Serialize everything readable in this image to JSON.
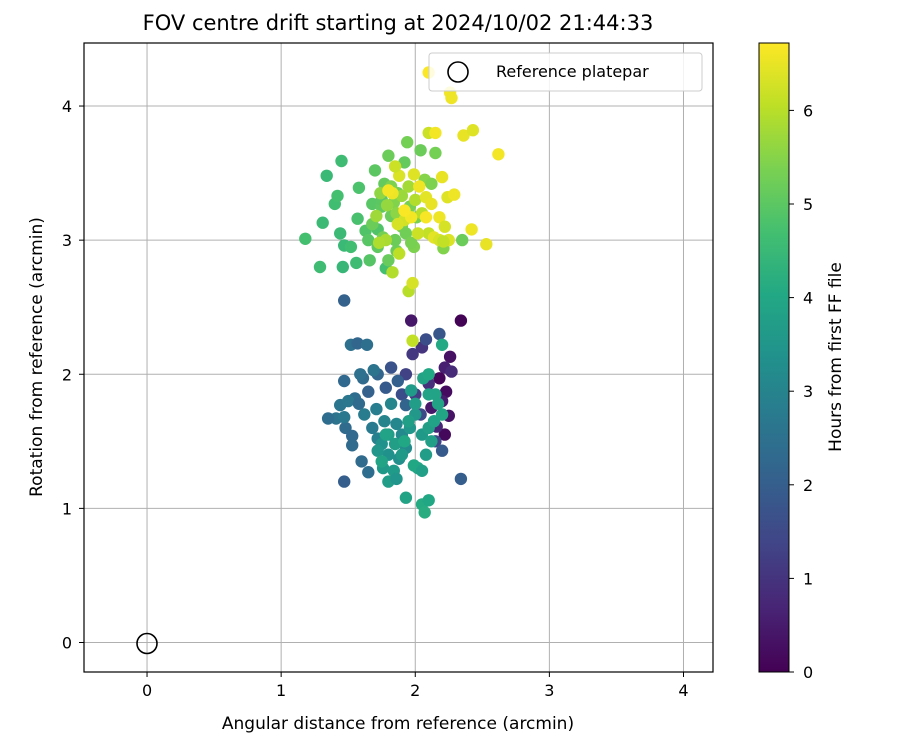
{
  "chart_data": {
    "type": "scatter",
    "title": "FOV centre drift starting at 2024/10/02 21:44:33",
    "xlabel": "Angular distance from reference (arcmin)",
    "ylabel": "Rotation from reference (arcmin)",
    "colorbar_label": "Hours from first FF file",
    "colormap": "viridis",
    "xlim": [
      -0.47,
      4.22
    ],
    "ylim": [
      -0.22,
      4.47
    ],
    "xticks": [
      "0",
      "1",
      "2",
      "3",
      "4"
    ],
    "yticks": [
      "0",
      "1",
      "2",
      "3",
      "4"
    ],
    "colorbar_range": [
      0,
      6.72
    ],
    "colorbar_ticks": [
      "0",
      "1",
      "2",
      "3",
      "4",
      "5",
      "6"
    ],
    "grid": true,
    "legend": {
      "position": "top-right",
      "entries": [
        "Reference platepar"
      ]
    },
    "reference_point": {
      "x": 0,
      "y": 0,
      "marker": "hollow circle"
    },
    "series": [
      {
        "color_by": "hours",
        "points": [
          [
            2.34,
            2.4,
            0.05
          ],
          [
            1.97,
            2.4,
            0.4
          ],
          [
            2.26,
            2.13,
            0.3
          ],
          [
            2.22,
            2.05,
            0.6
          ],
          [
            2.18,
            1.97,
            0.1
          ],
          [
            2.23,
            1.87,
            0.2
          ],
          [
            2.27,
            2.02,
            0.8
          ],
          [
            2.2,
            1.8,
            0.5
          ],
          [
            2.25,
            1.69,
            0.35
          ],
          [
            2.22,
            1.55,
            0.15
          ],
          [
            2.16,
            1.61,
            0.7
          ],
          [
            2.1,
            1.93,
            0.9
          ],
          [
            2.05,
            2.2,
            1.0
          ],
          [
            1.98,
            2.15,
            1.1
          ],
          [
            1.93,
            2.0,
            1.3
          ],
          [
            2.0,
            1.85,
            1.2
          ],
          [
            2.12,
            1.75,
            0.45
          ],
          [
            2.15,
            1.5,
            1.4
          ],
          [
            2.04,
            1.7,
            1.5
          ],
          [
            2.08,
            2.26,
            1.6
          ],
          [
            1.9,
            1.85,
            1.6
          ],
          [
            2.18,
            2.3,
            1.8
          ],
          [
            2.34,
            1.22,
            2.0
          ],
          [
            2.2,
            1.43,
            1.9
          ],
          [
            1.82,
            2.05,
            1.75
          ],
          [
            1.78,
            1.9,
            1.9
          ],
          [
            1.87,
            1.95,
            2.05
          ],
          [
            1.93,
            1.77,
            2.15
          ],
          [
            1.72,
            2.0,
            2.2
          ],
          [
            1.65,
            1.87,
            2.1
          ],
          [
            1.61,
            1.97,
            2.3
          ],
          [
            1.55,
            1.82,
            2.4
          ],
          [
            1.47,
            2.55,
            2.1
          ],
          [
            1.52,
            2.22,
            2.5
          ],
          [
            1.57,
            2.23,
            2.2
          ],
          [
            1.64,
            2.22,
            2.45
          ],
          [
            1.47,
            1.95,
            2.25
          ],
          [
            1.44,
            1.77,
            2.6
          ],
          [
            1.41,
            1.67,
            2.55
          ],
          [
            1.5,
            1.8,
            2.65
          ],
          [
            1.58,
            1.78,
            2.35
          ],
          [
            1.48,
            1.6,
            2.3
          ],
          [
            1.53,
            1.54,
            2.25
          ],
          [
            1.53,
            1.47,
            2.3
          ],
          [
            1.6,
            1.35,
            2.35
          ],
          [
            1.65,
            1.27,
            2.4
          ],
          [
            1.47,
            1.2,
            2.0
          ],
          [
            1.47,
            1.68,
            2.7
          ],
          [
            1.62,
            1.7,
            2.8
          ],
          [
            1.71,
            1.74,
            2.85
          ],
          [
            1.68,
            1.6,
            2.75
          ],
          [
            1.72,
            1.52,
            2.9
          ],
          [
            1.77,
            1.65,
            3.0
          ],
          [
            1.82,
            1.78,
            3.05
          ],
          [
            1.86,
            1.63,
            3.1
          ],
          [
            1.9,
            1.55,
            3.15
          ],
          [
            1.93,
            1.45,
            3.2
          ],
          [
            1.88,
            1.37,
            3.3
          ],
          [
            1.8,
            1.4,
            3.35
          ],
          [
            1.75,
            1.48,
            3.4
          ],
          [
            1.72,
            1.43,
            3.5
          ],
          [
            1.76,
            1.3,
            3.6
          ],
          [
            1.8,
            1.2,
            3.7
          ],
          [
            1.84,
            1.28,
            3.65
          ],
          [
            1.86,
            1.22,
            3.45
          ],
          [
            1.96,
            1.6,
            3.5
          ],
          [
            2.0,
            1.7,
            3.55
          ],
          [
            2.05,
            1.55,
            3.6
          ],
          [
            2.08,
            1.4,
            3.7
          ],
          [
            2.1,
            1.6,
            3.75
          ],
          [
            2.12,
            1.5,
            3.8
          ],
          [
            2.14,
            1.65,
            3.85
          ],
          [
            2.17,
            1.78,
            3.9
          ],
          [
            2.2,
            1.7,
            3.95
          ],
          [
            2.15,
            1.85,
            3.9
          ],
          [
            2.1,
            1.85,
            3.85
          ],
          [
            2.06,
            1.97,
            3.9
          ],
          [
            2.1,
            2.0,
            4.0
          ],
          [
            2.2,
            2.22,
            4.05
          ],
          [
            2.02,
            1.3,
            3.95
          ],
          [
            1.99,
            1.32,
            4.0
          ],
          [
            2.05,
            1.28,
            3.8
          ],
          [
            1.93,
            1.08,
            3.9
          ],
          [
            2.05,
            1.03,
            4.1
          ],
          [
            2.1,
            1.06,
            4.0
          ],
          [
            2.07,
            0.97,
            4.15
          ],
          [
            1.9,
            1.4,
            3.6
          ],
          [
            1.8,
            1.55,
            3.7
          ],
          [
            1.85,
            1.48,
            3.75
          ],
          [
            1.97,
            1.88,
            3.65
          ],
          [
            2.0,
            1.78,
            3.7
          ],
          [
            1.95,
            1.65,
            3.8
          ],
          [
            1.78,
            1.55,
            3.85
          ],
          [
            1.75,
            1.35,
            3.9
          ],
          [
            1.92,
            1.5,
            4.0
          ],
          [
            1.35,
            1.67,
            2.4
          ],
          [
            1.59,
            2.0,
            2.5
          ],
          [
            1.69,
            2.03,
            2.55
          ],
          [
            1.18,
            3.01,
            4.7
          ],
          [
            1.29,
            2.8,
            4.6
          ],
          [
            1.31,
            3.13,
            4.55
          ],
          [
            1.34,
            3.48,
            4.5
          ],
          [
            1.4,
            3.27,
            4.65
          ],
          [
            1.42,
            3.33,
            4.7
          ],
          [
            1.45,
            3.59,
            4.6
          ],
          [
            1.44,
            3.05,
            4.55
          ],
          [
            1.47,
            2.96,
            4.5
          ],
          [
            1.46,
            2.8,
            4.45
          ],
          [
            1.52,
            2.95,
            4.65
          ],
          [
            1.56,
            2.83,
            4.6
          ],
          [
            1.57,
            3.16,
            4.75
          ],
          [
            1.58,
            3.39,
            4.8
          ],
          [
            1.63,
            3.07,
            4.85
          ],
          [
            1.66,
            2.85,
            4.9
          ],
          [
            1.68,
            3.27,
            4.95
          ],
          [
            1.7,
            3.52,
            5.0
          ],
          [
            1.72,
            3.08,
            4.85
          ],
          [
            1.75,
            3.25,
            5.05
          ],
          [
            1.77,
            3.42,
            5.1
          ],
          [
            1.78,
            2.79,
            4.7
          ],
          [
            1.8,
            3.63,
            5.2
          ],
          [
            1.82,
            3.18,
            5.15
          ],
          [
            1.85,
            3.0,
            5.2
          ],
          [
            1.87,
            3.35,
            5.25
          ],
          [
            1.9,
            3.1,
            5.3
          ],
          [
            1.92,
            3.58,
            5.1
          ],
          [
            1.94,
            3.73,
            5.3
          ],
          [
            1.96,
            3.25,
            5.35
          ],
          [
            1.99,
            2.95,
            5.4
          ],
          [
            2.01,
            3.17,
            5.35
          ],
          [
            2.04,
            3.67,
            5.2
          ],
          [
            2.07,
            3.45,
            5.5
          ],
          [
            2.12,
            3.42,
            5.4
          ],
          [
            2.15,
            3.65,
            5.3
          ],
          [
            2.21,
            2.94,
            5.45
          ],
          [
            2.35,
            3.0,
            5.2
          ],
          [
            1.75,
            3.3,
            5.0
          ],
          [
            1.65,
            3.0,
            4.95
          ],
          [
            1.72,
            2.95,
            5.05
          ],
          [
            1.8,
            2.85,
            5.15
          ],
          [
            1.86,
            2.92,
            5.2
          ],
          [
            1.93,
            3.05,
            5.25
          ],
          [
            1.97,
            2.98,
            5.35
          ],
          [
            1.76,
            3.02,
            5.3
          ],
          [
            1.68,
            3.12,
            5.2
          ],
          [
            1.82,
            3.4,
            5.4
          ],
          [
            1.84,
            3.28,
            5.45
          ],
          [
            1.86,
            3.2,
            5.55
          ],
          [
            1.74,
            3.35,
            5.6
          ],
          [
            1.79,
            3.26,
            5.65
          ],
          [
            1.71,
            3.18,
            5.75
          ],
          [
            1.78,
            3.0,
            5.85
          ],
          [
            1.73,
            2.98,
            5.9
          ],
          [
            1.83,
            2.76,
            5.95
          ],
          [
            1.88,
            2.9,
            6.05
          ],
          [
            1.95,
            2.62,
            6.0
          ],
          [
            1.98,
            2.68,
            6.3
          ],
          [
            1.98,
            2.25,
            6.1
          ],
          [
            1.9,
            3.33,
            5.7
          ],
          [
            1.95,
            3.4,
            5.8
          ],
          [
            2.0,
            3.3,
            5.95
          ],
          [
            2.05,
            3.2,
            6.0
          ],
          [
            2.1,
            3.05,
            6.1
          ],
          [
            2.02,
            3.05,
            6.2
          ],
          [
            1.92,
            3.15,
            6.25
          ],
          [
            1.88,
            3.48,
            6.35
          ],
          [
            1.85,
            3.55,
            6.2
          ],
          [
            1.99,
            3.49,
            6.4
          ],
          [
            2.08,
            3.32,
            6.45
          ],
          [
            2.1,
            3.8,
            6.2
          ],
          [
            2.12,
            3.27,
            6.5
          ],
          [
            2.15,
            3.8,
            6.6
          ],
          [
            2.18,
            3.17,
            6.55
          ],
          [
            2.2,
            3.47,
            6.5
          ],
          [
            2.22,
            3.1,
            6.3
          ],
          [
            2.24,
            3.32,
            6.4
          ],
          [
            2.25,
            3.0,
            6.35
          ],
          [
            2.29,
            3.34,
            6.55
          ],
          [
            2.26,
            4.1,
            6.6
          ],
          [
            2.27,
            4.06,
            6.55
          ],
          [
            2.1,
            4.25,
            6.7
          ],
          [
            2.36,
            3.78,
            6.5
          ],
          [
            2.43,
            3.82,
            6.4
          ],
          [
            2.42,
            3.08,
            6.55
          ],
          [
            2.53,
            2.97,
            6.5
          ],
          [
            2.62,
            3.64,
            6.6
          ],
          [
            2.14,
            3.02,
            6.45
          ],
          [
            2.18,
            3.0,
            6.3
          ],
          [
            2.08,
            3.17,
            6.65
          ],
          [
            1.97,
            3.17,
            6.6
          ],
          [
            1.92,
            3.22,
            6.68
          ],
          [
            1.83,
            3.35,
            6.55
          ],
          [
            1.8,
            3.37,
            6.62
          ],
          [
            1.87,
            3.12,
            6.3
          ],
          [
            2.03,
            3.4,
            6.58
          ],
          [
            2.21,
            2.99,
            6.1
          ]
        ]
      }
    ]
  }
}
